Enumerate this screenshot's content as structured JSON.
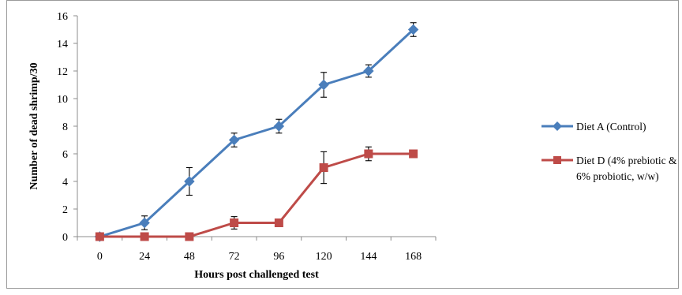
{
  "chart_data": {
    "type": "line",
    "title": "",
    "xlabel": "Hours post challenged test",
    "ylabel": "Number of dead shrimp/30",
    "x": [
      0,
      24,
      48,
      72,
      96,
      120,
      144,
      168
    ],
    "ylim": [
      0,
      16
    ],
    "yticks": [
      0,
      2,
      4,
      6,
      8,
      10,
      12,
      14,
      16
    ],
    "grid": false,
    "legend_position": "right",
    "series": [
      {
        "name": "Diet A (Control)",
        "name_lines": [
          "Diet A (Control)"
        ],
        "color": "#4a7ebb",
        "marker": "diamond",
        "values": [
          0,
          1,
          4,
          7,
          8,
          11,
          12,
          15
        ],
        "errors": [
          0,
          0.5,
          1.0,
          0.5,
          0.5,
          0.9,
          0.45,
          0.5
        ]
      },
      {
        "name": "Diet D (4% prebiotic & 6% probiotic, w/w)",
        "name_lines": [
          "Diet D (4% prebiotic &",
          "6% probiotic, w/w)"
        ],
        "color": "#be4b48",
        "marker": "square",
        "values": [
          0,
          0,
          0,
          1,
          1,
          5,
          6,
          6
        ],
        "errors": [
          0,
          0,
          0,
          0.45,
          0,
          1.15,
          0.5,
          0
        ]
      }
    ]
  }
}
